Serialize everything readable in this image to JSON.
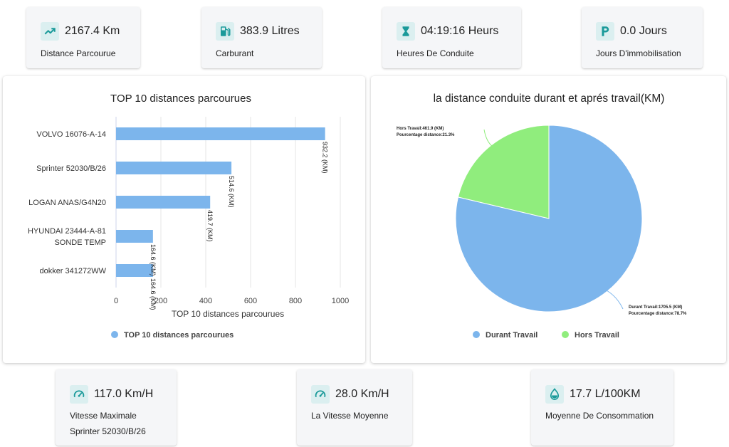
{
  "stats_top": [
    {
      "value": "2167.4 Km",
      "label": "Distance Parcourue",
      "icon": "trending-up-icon"
    },
    {
      "value": "383.9 Litres",
      "label": "Carburant",
      "icon": "fuel-pump-icon"
    },
    {
      "value": "04:19:16 Heurs",
      "label": "Heures De Conduite",
      "icon": "hourglass-icon"
    },
    {
      "value": "0.0 Jours",
      "label": "Jours D'immobilisation",
      "icon": "parking-icon"
    }
  ],
  "stats_bottom": [
    {
      "value": "117.0 Km/H",
      "label": "Vitesse Maximale",
      "sub": "Sprinter 52030/B/26",
      "icon": "speedometer-icon"
    },
    {
      "value": "28.0 Km/H",
      "label": "La Vitesse Moyenne",
      "icon": "speedometer-icon"
    },
    {
      "value": "17.7 L/100KM",
      "label": "Moyenne De Consommation",
      "icon": "water-drop-icon"
    }
  ],
  "colors": {
    "accent": "#1a9a9a",
    "icon_bg": "#dbeff0",
    "bar": "#7cb5ec",
    "pie_durant": "#7cb5ec",
    "pie_hors": "#90ed7d"
  },
  "chart_data": [
    {
      "type": "bar",
      "orientation": "horizontal",
      "title": "TOP 10 distances parcourues",
      "categories": [
        "VOLVO 16076-A-14",
        "Sprinter 52030/B/26",
        "LOGAN ANAS/G4N20",
        "HYUNDAI 23444-A-81 SONDE TEMP",
        "dokker 341272WW"
      ],
      "category_lines": [
        [
          "VOLVO 16076-A-14"
        ],
        [
          "Sprinter 52030/B/26"
        ],
        [
          "LOGAN ANAS/G4N20"
        ],
        [
          "HYUNDAI 23444-A-81",
          "SONDE TEMP"
        ],
        [
          "dokker 341272WW"
        ]
      ],
      "values": [
        932.2,
        514.6,
        419.7,
        164.6,
        164.6
      ],
      "data_labels": [
        "932.2 (KM)",
        "514.6 (KM)",
        "419.7 (KM)",
        "164.6 (KM)",
        "164.6 (KM)"
      ],
      "xlabel": "TOP 10 distances parcourues",
      "xlim": [
        0,
        1000
      ],
      "xticks": [
        "0",
        "200",
        "400",
        "600",
        "800",
        "1000"
      ],
      "grid": true,
      "legend": {
        "position": "bottom",
        "entries": [
          "TOP 10 distances parcourues"
        ]
      }
    },
    {
      "type": "pie",
      "title": "la distance conduite durant et aprés travail(KM)",
      "slices": [
        {
          "name": "Durant Travail",
          "value": 1705.5,
          "percent": 78.7,
          "label_line1": "Durant Travail:1705.5 (KM)",
          "label_line2": "Pourcentage distance:78.7%"
        },
        {
          "name": "Hors Travail",
          "value": 461.9,
          "percent": 21.3,
          "label_line1": "Hors Travail:461.9 (KM)",
          "label_line2": "Pourcentage distance:21.3%"
        }
      ],
      "legend": {
        "position": "bottom",
        "entries": [
          "Durant Travail",
          "Hors Travail"
        ]
      }
    }
  ]
}
